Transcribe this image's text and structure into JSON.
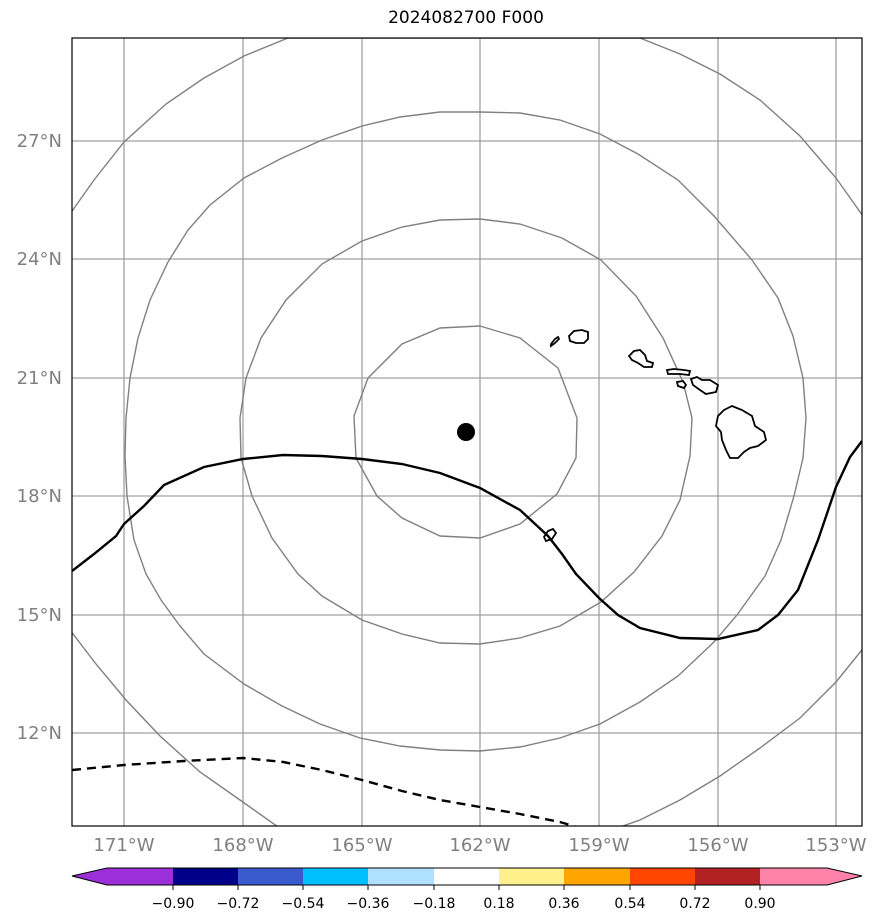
{
  "title": "2024082700 F000",
  "lat_labels": [
    "27°N",
    "24°N",
    "21°N",
    "18°N",
    "15°N",
    "12°N"
  ],
  "lon_labels": [
    "171°W",
    "168°W",
    "165°W",
    "162°W",
    "159°W",
    "156°W",
    "153°W"
  ],
  "colorbar": {
    "colors": [
      "#9b30d9",
      "#00008b",
      "#3a5bd0",
      "#00bfff",
      "#b0e0ff",
      "#ffffff",
      "#fff08c",
      "#ffa500",
      "#ff4500",
      "#b22222",
      "#ff82ab"
    ],
    "labels": [
      "−0.90",
      "−0.72",
      "−0.54",
      "−0.36",
      "−0.18",
      "0.18",
      "0.36",
      "0.54",
      "0.72",
      "0.90"
    ]
  },
  "colors": {
    "grid": "#a0a0a0",
    "rings": "#808080",
    "coast": "#000000",
    "marker": "#000000"
  }
}
